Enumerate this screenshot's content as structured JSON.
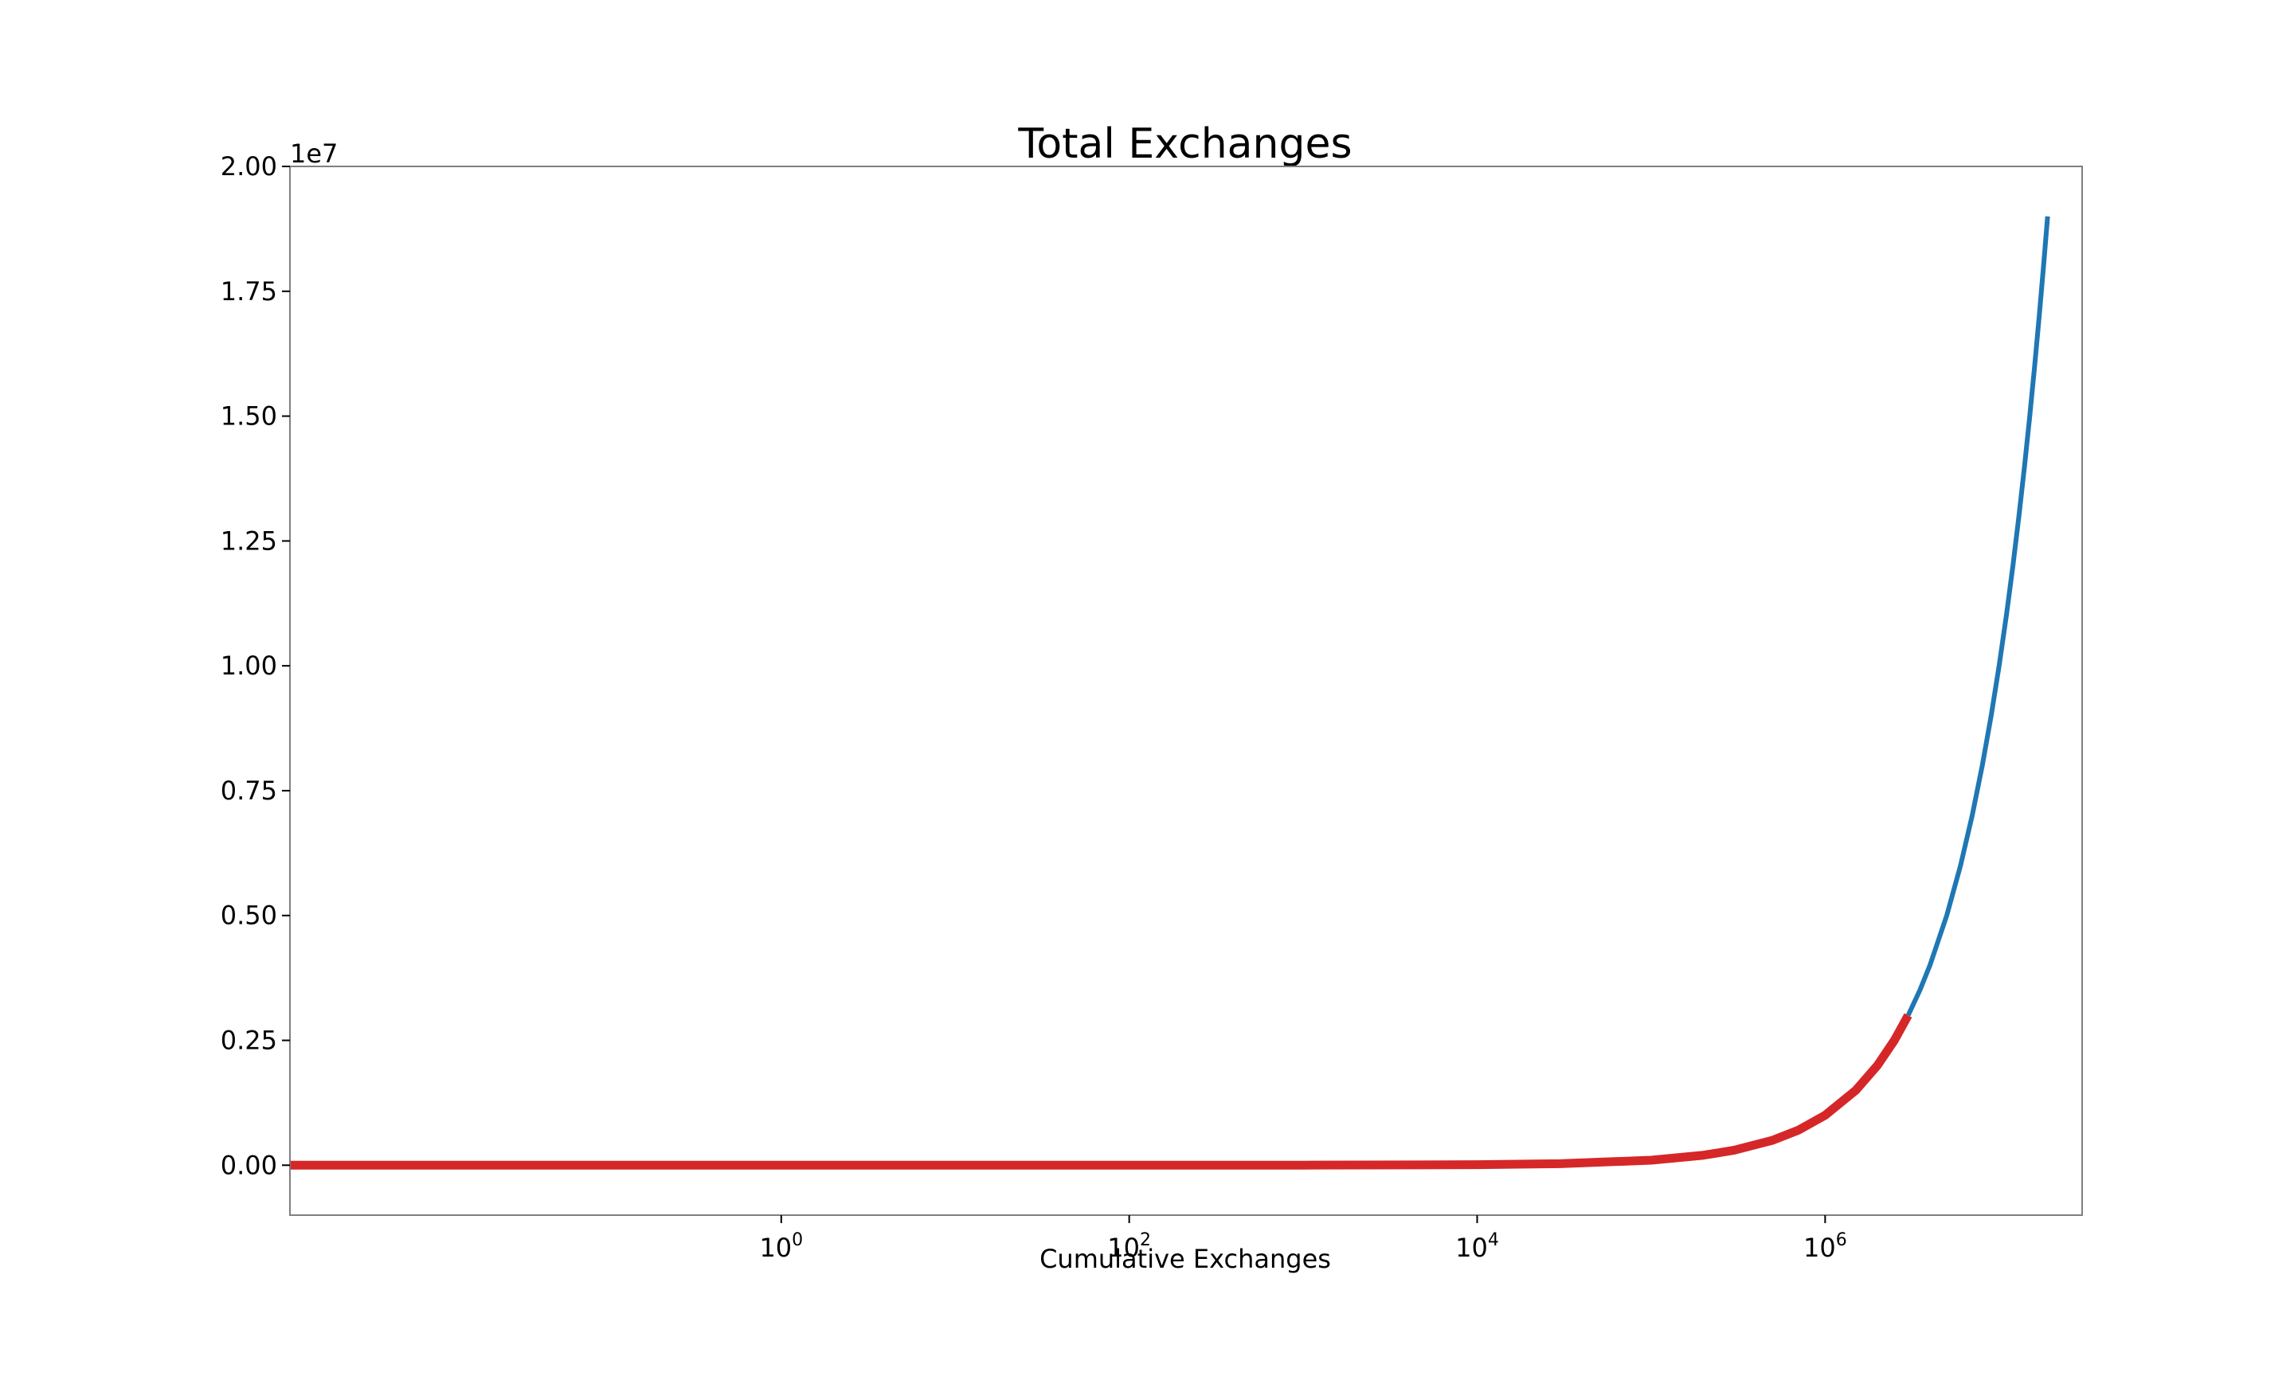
{
  "chart_data": {
    "type": "line",
    "title": "Total Exchanges",
    "xlabel": "Cumulative Exchanges",
    "ylabel": "",
    "x_scale": "log",
    "xlim": [
      0.0015,
      30000000
    ],
    "ylim": [
      -1000000,
      20000000
    ],
    "y_offset_label": "1e7",
    "y_ticks": [
      {
        "value": 0,
        "label": "0.00"
      },
      {
        "value": 2500000,
        "label": "0.25"
      },
      {
        "value": 5000000,
        "label": "0.50"
      },
      {
        "value": 7500000,
        "label": "0.75"
      },
      {
        "value": 10000000,
        "label": "1.00"
      },
      {
        "value": 12500000,
        "label": "1.25"
      },
      {
        "value": 15000000,
        "label": "1.50"
      },
      {
        "value": 17500000,
        "label": "1.75"
      },
      {
        "value": 20000000,
        "label": "2.00"
      }
    ],
    "x_ticks": [
      {
        "value": 1,
        "base": "10",
        "exp": "0"
      },
      {
        "value": 100,
        "base": "10",
        "exp": "2"
      },
      {
        "value": 10000,
        "base": "10",
        "exp": "4"
      },
      {
        "value": 1000000,
        "base": "10",
        "exp": "6"
      }
    ],
    "grid": false,
    "legend": "none",
    "series": [
      {
        "color": "#1f77b4",
        "line_width": 6,
        "x": [
          3000000,
          3500000,
          4000000,
          5000000,
          6000000,
          7000000,
          8000000,
          9000000,
          10000000,
          11000000,
          12000000,
          13000000,
          14000000,
          15000000,
          16000000,
          17000000,
          18000000,
          19000000
        ],
        "y": [
          3000000,
          3500000,
          4000000,
          5000000,
          6000000,
          7000000,
          8000000,
          9000000,
          10000000,
          11000000,
          12000000,
          13000000,
          14000000,
          15000000,
          16000000,
          17000000,
          18000000,
          19000000
        ]
      },
      {
        "color": "#d62728",
        "line_width": 11,
        "x": [
          0.0015,
          0.01,
          0.1,
          1,
          10,
          100,
          1000,
          10000,
          30000,
          100000,
          200000,
          300000,
          500000,
          700000,
          1000000,
          1500000,
          2000000,
          2500000,
          3000000
        ],
        "y": [
          0,
          0,
          0,
          1,
          10,
          100,
          1000,
          10000,
          30000,
          100000,
          200000,
          300000,
          500000,
          700000,
          1000000,
          1500000,
          2000000,
          2500000,
          3000000
        ]
      }
    ]
  }
}
